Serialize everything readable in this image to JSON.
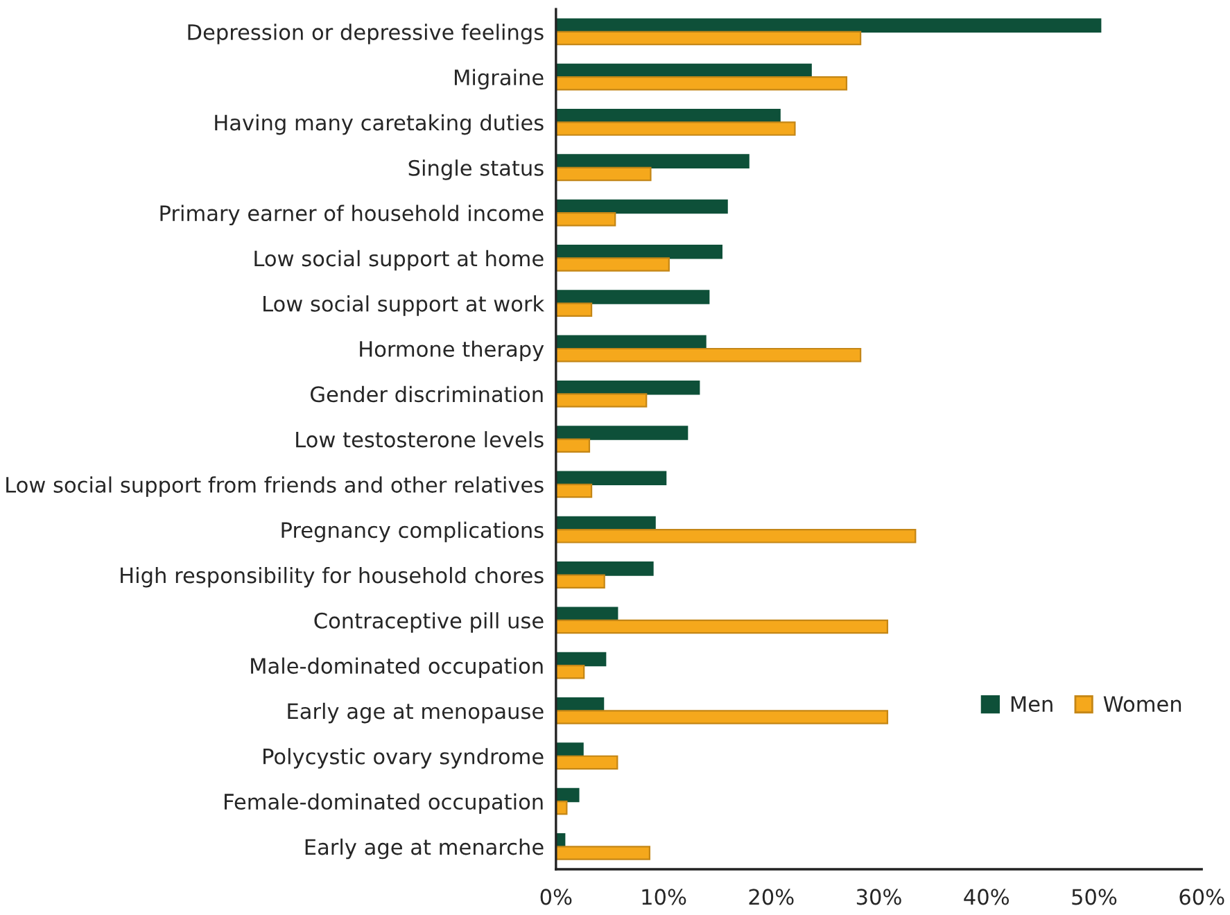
{
  "chart_data": {
    "type": "bar",
    "orientation": "horizontal",
    "categories": [
      "Depression or depressive feelings",
      "Migraine",
      "Having many caretaking duties",
      "Single status",
      "Primary earner of household income",
      "Low social support at home",
      "Low social support at work",
      "Hormone therapy",
      "Gender discrimination",
      "Low testosterone levels",
      "Low social support from friends and other relatives",
      "Pregnancy complications",
      "High responsibility for household chores",
      "Contraceptive pill use",
      "Male-dominated occupation",
      "Early age at menopause",
      "Polycystic ovary syndrome",
      "Female-dominated occupation",
      "Early age at menarche"
    ],
    "series": [
      {
        "name": "Men",
        "color": "#0e5039",
        "values": [
          50.6,
          23.7,
          20.8,
          17.9,
          15.9,
          15.4,
          14.2,
          13.9,
          13.3,
          12.2,
          10.2,
          9.2,
          9.0,
          5.7,
          4.6,
          4.4,
          2.5,
          2.1,
          0.8
        ]
      },
      {
        "name": "Women",
        "color": "#f5a81c",
        "values": [
          28.3,
          27.0,
          22.2,
          8.8,
          5.5,
          10.5,
          3.3,
          28.3,
          8.4,
          3.1,
          3.3,
          33.4,
          4.5,
          30.8,
          2.6,
          30.8,
          5.7,
          1.0,
          8.7
        ]
      }
    ],
    "xlim": [
      0,
      60
    ],
    "xticks": [
      {
        "value": 0,
        "label": "0%"
      },
      {
        "value": 10,
        "label": "10%"
      },
      {
        "value": 20,
        "label": "20%"
      },
      {
        "value": 30,
        "label": "30%"
      },
      {
        "value": 40,
        "label": "40%"
      },
      {
        "value": 50,
        "label": "50%"
      },
      {
        "value": 60,
        "label": "60%"
      }
    ],
    "grid": false,
    "legend": "right"
  }
}
